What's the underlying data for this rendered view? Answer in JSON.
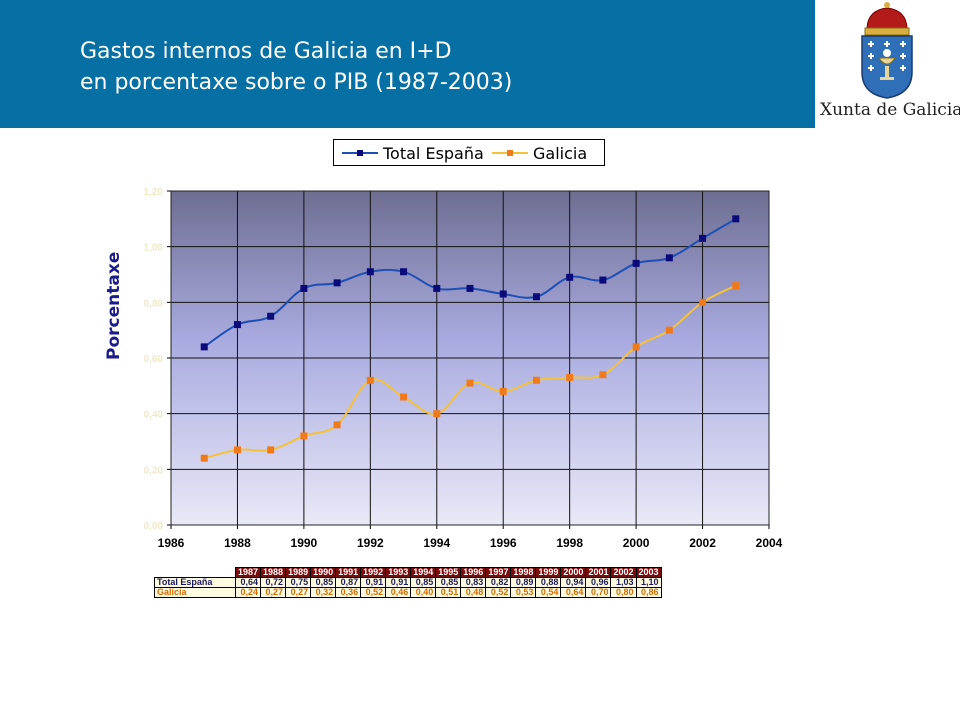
{
  "header": {
    "title_line1": "Gastos internos de Galicia en I+D",
    "title_line2": "en porcentaxe sobre o PIB (1987-2003)",
    "logo_text": "Xunta de Galicia"
  },
  "colors": {
    "header_bg": "#066fa3",
    "series_espana": "#1f4fb5",
    "marker_espana": "#0a0a7a",
    "series_galicia": "#f5c13a",
    "marker_galicia": "#f07a1a",
    "table_header_bg": "#7a0b0b"
  },
  "chart_data": {
    "type": "line",
    "ylabel": "Porcentaxe",
    "xlim": [
      1986,
      2004
    ],
    "ylim": [
      0,
      1.2
    ],
    "x_ticks": [
      "1986",
      "1988",
      "1990",
      "1992",
      "1994",
      "1996",
      "1998",
      "2000",
      "2002",
      "2004"
    ],
    "y_ticks": [
      "0,00",
      "0,20",
      "0,40",
      "0,60",
      "0,80",
      "1,00",
      "1,20"
    ],
    "grid": true,
    "legend_position": "top",
    "x": [
      1987,
      1988,
      1989,
      1990,
      1991,
      1992,
      1993,
      1994,
      1995,
      1996,
      1997,
      1998,
      1999,
      2000,
      2001,
      2002,
      2003
    ],
    "series": [
      {
        "name": "Total España",
        "values": [
          0.64,
          0.72,
          0.75,
          0.85,
          0.87,
          0.91,
          0.91,
          0.85,
          0.85,
          0.83,
          0.82,
          0.89,
          0.88,
          0.94,
          0.96,
          1.03,
          1.1
        ]
      },
      {
        "name": "Galicia",
        "values": [
          0.24,
          0.27,
          0.27,
          0.32,
          0.36,
          0.52,
          0.46,
          0.4,
          0.51,
          0.48,
          0.52,
          0.53,
          0.54,
          0.64,
          0.7,
          0.8,
          0.86
        ]
      }
    ]
  },
  "table": {
    "years": [
      "1987",
      "1988",
      "1989",
      "1990",
      "1991",
      "1992",
      "1993",
      "1994",
      "1995",
      "1996",
      "1997",
      "1998",
      "1999",
      "2000",
      "2001",
      "2002",
      "2003"
    ],
    "rows": [
      {
        "label": "Total España",
        "cells": [
          "0,64",
          "0,72",
          "0,75",
          "0,85",
          "0,87",
          "0,91",
          "0,91",
          "0,85",
          "0,85",
          "0,83",
          "0,82",
          "0,89",
          "0,88",
          "0,94",
          "0,96",
          "1,03",
          "1,10"
        ]
      },
      {
        "label": "Galicia",
        "cells": [
          "0,24",
          "0,27",
          "0,27",
          "0,32",
          "0,36",
          "0,52",
          "0,46",
          "0,40",
          "0,51",
          "0,48",
          "0,52",
          "0,53",
          "0,54",
          "0,64",
          "0,70",
          "0,80",
          "0,86"
        ]
      }
    ]
  }
}
